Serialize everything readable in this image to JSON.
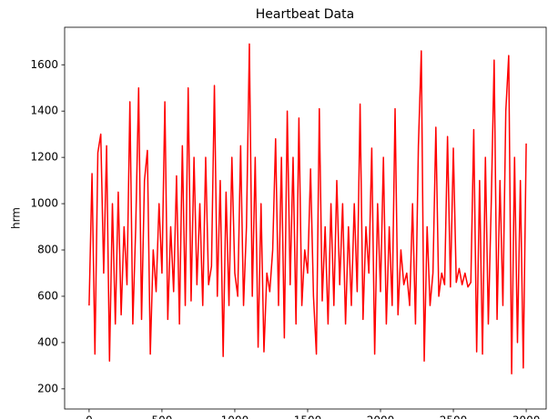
{
  "chart_data": {
    "type": "line",
    "title": "Heartbeat Data",
    "ylabel": "hrm",
    "x": [
      0,
      20,
      40,
      60,
      80,
      100,
      120,
      140,
      160,
      180,
      200,
      220,
      240,
      260,
      280,
      300,
      320,
      340,
      360,
      380,
      400,
      420,
      440,
      460,
      480,
      500,
      520,
      540,
      560,
      580,
      600,
      620,
      640,
      660,
      680,
      700,
      720,
      740,
      760,
      780,
      800,
      820,
      840,
      860,
      880,
      900,
      920,
      940,
      960,
      980,
      1000,
      1020,
      1040,
      1060,
      1080,
      1100,
      1120,
      1140,
      1160,
      1180,
      1200,
      1220,
      1240,
      1260,
      1280,
      1300,
      1320,
      1340,
      1360,
      1380,
      1400,
      1420,
      1440,
      1460,
      1480,
      1500,
      1520,
      1540,
      1560,
      1580,
      1600,
      1620,
      1640,
      1660,
      1680,
      1700,
      1720,
      1740,
      1760,
      1780,
      1800,
      1820,
      1840,
      1860,
      1880,
      1900,
      1920,
      1940,
      1960,
      1980,
      2000,
      2020,
      2040,
      2060,
      2080,
      2100,
      2120,
      2140,
      2160,
      2180,
      2200,
      2220,
      2240,
      2260,
      2280,
      2300,
      2320,
      2340,
      2360,
      2380,
      2400,
      2420,
      2440,
      2460,
      2480,
      2500,
      2520,
      2540,
      2560,
      2580,
      2600,
      2620,
      2640,
      2660,
      2680,
      2700,
      2720,
      2740,
      2760,
      2780,
      2800,
      2820,
      2840,
      2860,
      2880,
      2900,
      2920,
      2940,
      2960,
      2980,
      3000
    ],
    "series": [
      {
        "name": "hrm",
        "color": "#ff0000",
        "values": [
          560,
          1130,
          350,
          1220,
          1300,
          700,
          1250,
          320,
          1000,
          480,
          1050,
          520,
          900,
          650,
          1440,
          480,
          900,
          1500,
          500,
          1100,
          1230,
          350,
          800,
          620,
          1000,
          700,
          1440,
          500,
          900,
          620,
          1120,
          480,
          1250,
          560,
          1500,
          580,
          1200,
          650,
          1000,
          560,
          1200,
          650,
          730,
          1510,
          600,
          1100,
          340,
          1050,
          560,
          1200,
          700,
          600,
          1250,
          560,
          900,
          1690,
          600,
          1200,
          380,
          1000,
          360,
          700,
          620,
          800,
          1280,
          560,
          1200,
          420,
          1400,
          650,
          1200,
          480,
          1370,
          560,
          800,
          700,
          1150,
          600,
          350,
          1410,
          580,
          900,
          480,
          1000,
          560,
          1100,
          650,
          1000,
          480,
          900,
          560,
          1000,
          620,
          1430,
          500,
          900,
          700,
          1240,
          350,
          1000,
          620,
          1200,
          480,
          900,
          560,
          1410,
          520,
          800,
          650,
          700,
          560,
          1000,
          480,
          1250,
          1660,
          320,
          900,
          560,
          700,
          1330,
          600,
          700,
          650,
          1290,
          640,
          1240,
          660,
          720,
          650,
          700,
          640,
          660,
          1320,
          360,
          1100,
          350,
          1200,
          480,
          1000,
          1620,
          500,
          1100,
          560,
          1400,
          1640,
          265,
          1200,
          400,
          1100,
          290,
          1260
        ]
      }
    ],
    "xlim": [
      -168,
      3137
    ],
    "ylim": [
      113,
      1762
    ],
    "xticks": [
      0,
      500,
      1000,
      1500,
      2000,
      2500,
      3000
    ],
    "yticks": [
      200,
      400,
      600,
      800,
      1000,
      1200,
      1400,
      1600
    ]
  }
}
